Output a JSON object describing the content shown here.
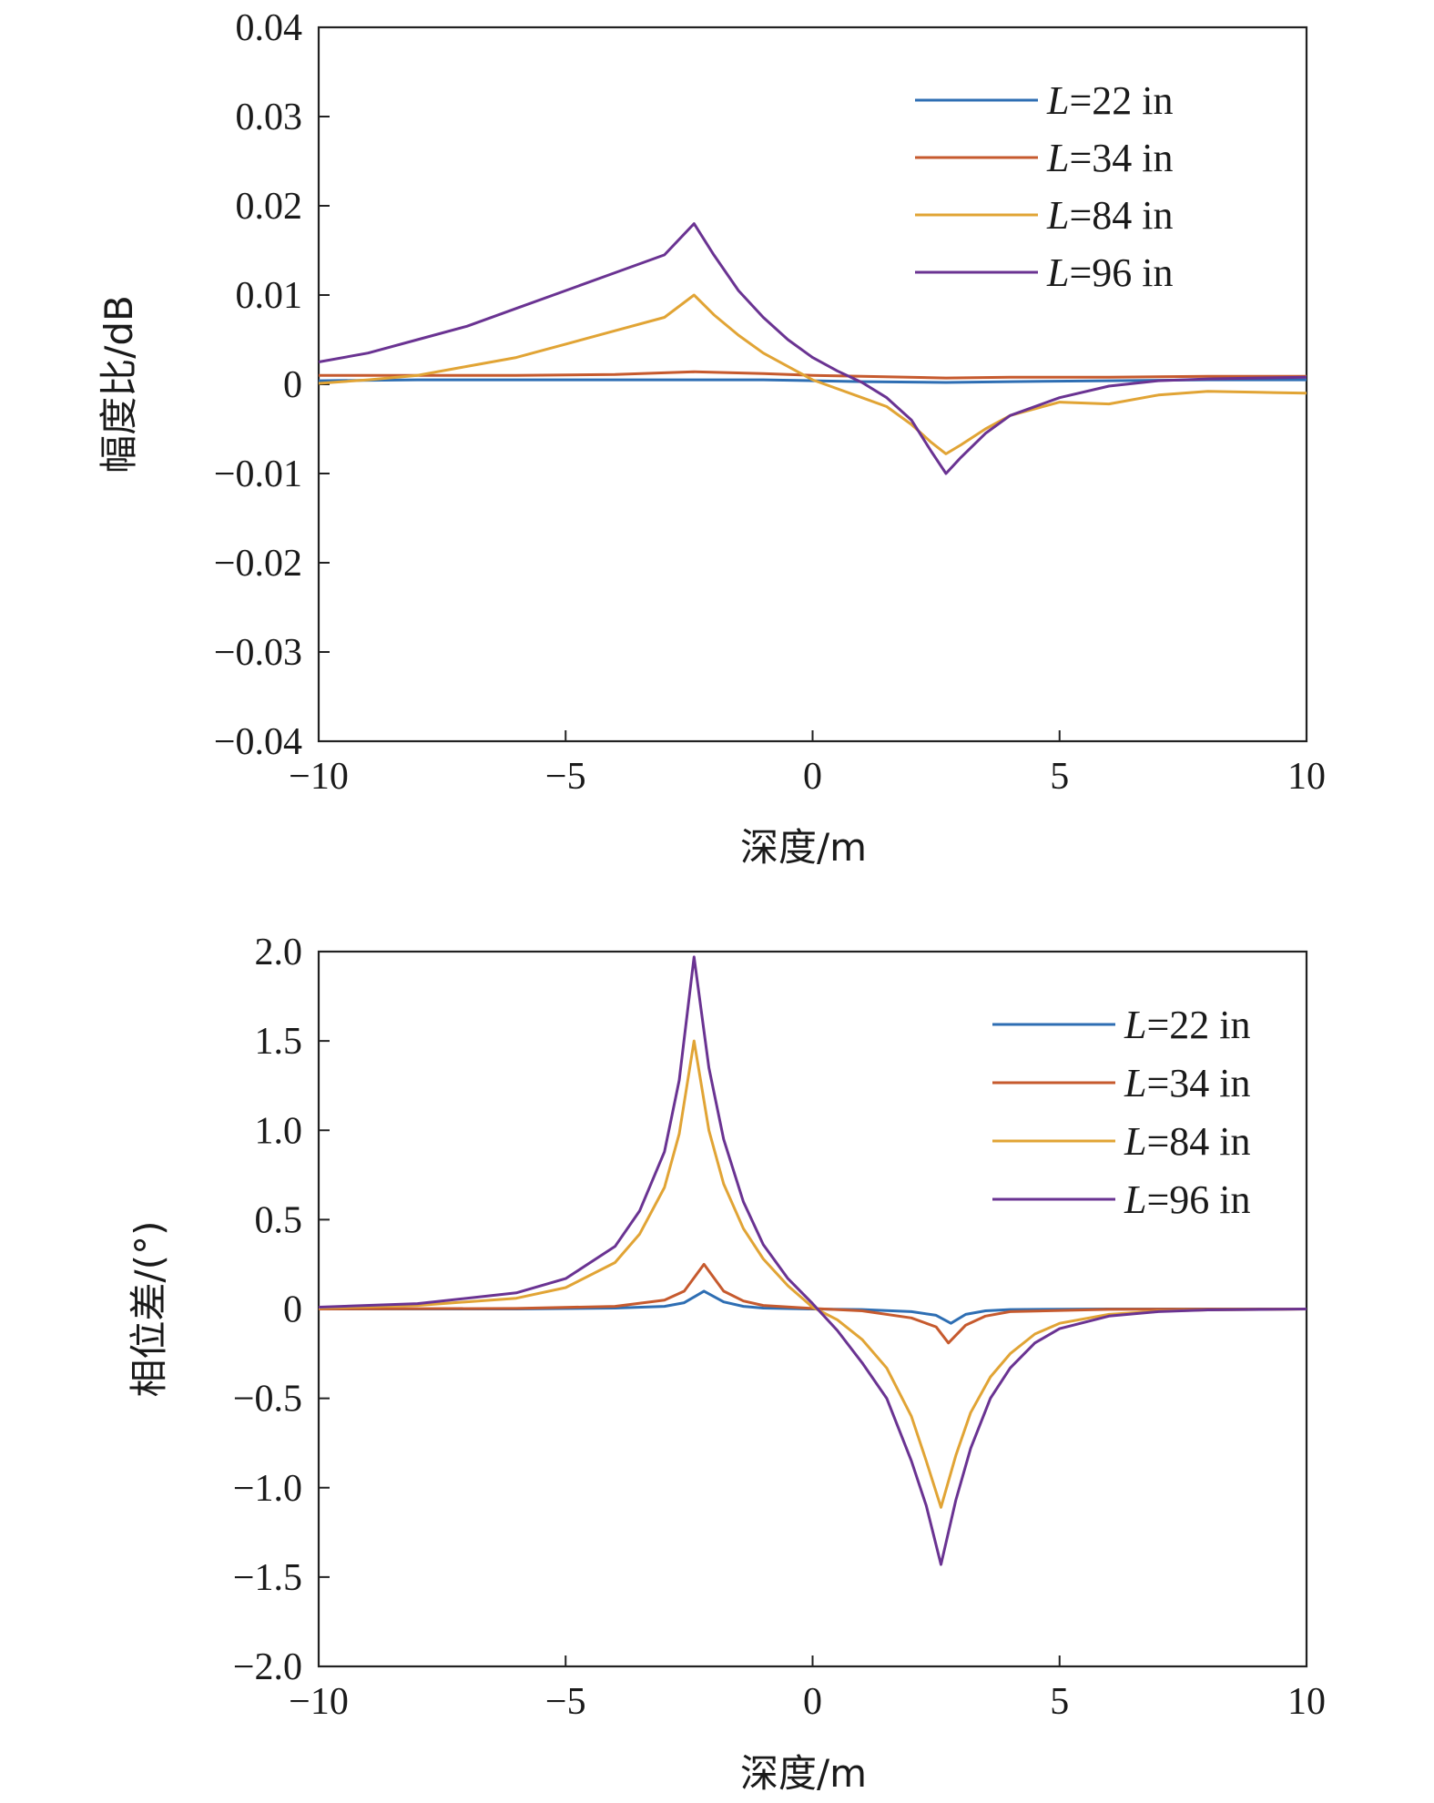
{
  "chart_data": [
    {
      "type": "line",
      "title": "",
      "xlabel": "深度/m",
      "ylabel": "幅度比/dB",
      "xlim": [
        -10,
        10
      ],
      "ylim": [
        -0.04,
        0.04
      ],
      "xticks": [
        -10,
        -5,
        0,
        5,
        10
      ],
      "xtick_labels": [
        "−10",
        "−5",
        "0",
        "5",
        "10"
      ],
      "yticks": [
        0.04,
        0.03,
        0.02,
        0.01,
        0,
        -0.01,
        -0.02,
        -0.03,
        -0.04
      ],
      "ytick_labels": [
        "0.04",
        "0.03",
        "0.02",
        "0.01",
        "0",
        "−0.01",
        "−0.02",
        "−0.03",
        "−0.04"
      ],
      "grid": false,
      "legend_position": "top-right",
      "series": [
        {
          "name": "L=22 in",
          "legend_var": "L",
          "legend_rest": "=22 in",
          "color": "#2e6eb3",
          "x": [
            -10,
            -8,
            -6,
            -4,
            -2.4,
            -1,
            0,
            1,
            2.7,
            4,
            6,
            8,
            10
          ],
          "y": [
            0.0004,
            0.0005,
            0.0005,
            0.0005,
            0.0005,
            0.0005,
            0.0004,
            0.0003,
            0.0002,
            0.0003,
            0.0004,
            0.0005,
            0.0005
          ]
        },
        {
          "name": "L=34 in",
          "legend_var": "L",
          "legend_rest": "=34 in",
          "color": "#c65a2e",
          "x": [
            -10,
            -8,
            -6,
            -4,
            -2.4,
            -1,
            0,
            1,
            2.7,
            4,
            6,
            8,
            10
          ],
          "y": [
            0.001,
            0.001,
            0.001,
            0.0011,
            0.0014,
            0.0012,
            0.001,
            0.0009,
            0.0007,
            0.0008,
            0.0008,
            0.0009,
            0.0009
          ]
        },
        {
          "name": "L=84 in",
          "legend_var": "L",
          "legend_rest": "=84 in",
          "color": "#e1a435",
          "x": [
            -10,
            -9,
            -8,
            -7,
            -6,
            -5,
            -4,
            -3,
            -2.4,
            -2,
            -1.5,
            -1,
            -0.5,
            0,
            0.5,
            1,
            1.5,
            2,
            2.4,
            2.7,
            3,
            3.5,
            4,
            5,
            6,
            7,
            8,
            9,
            10
          ],
          "y": [
            0.0001,
            0.0005,
            0.001,
            0.002,
            0.003,
            0.0045,
            0.006,
            0.0075,
            0.01,
            0.0078,
            0.0055,
            0.0035,
            0.002,
            0.0005,
            -0.0005,
            -0.0015,
            -0.0025,
            -0.0045,
            -0.0065,
            -0.0078,
            -0.0068,
            -0.005,
            -0.0035,
            -0.002,
            -0.0022,
            -0.0012,
            -0.0008,
            -0.0009,
            -0.001
          ]
        },
        {
          "name": "L=96 in",
          "legend_var": "L",
          "legend_rest": "=96 in",
          "color": "#6a3392",
          "x": [
            -10,
            -9,
            -8,
            -7,
            -6,
            -5,
            -4,
            -3,
            -2.4,
            -2,
            -1.5,
            -1,
            -0.5,
            0,
            0.5,
            1,
            1.5,
            2,
            2.4,
            2.7,
            3,
            3.5,
            4,
            5,
            6,
            7,
            8,
            9,
            10
          ],
          "y": [
            0.0025,
            0.0035,
            0.005,
            0.0065,
            0.0085,
            0.0105,
            0.0125,
            0.0145,
            0.018,
            0.0145,
            0.0105,
            0.0075,
            0.005,
            0.003,
            0.0015,
            0.0002,
            -0.0015,
            -0.004,
            -0.0075,
            -0.01,
            -0.0082,
            -0.0055,
            -0.0035,
            -0.0015,
            -0.0002,
            0.0004,
            0.0006,
            0.0007,
            0.0008
          ]
        }
      ]
    },
    {
      "type": "line",
      "title": "",
      "xlabel": "深度/m",
      "ylabel": "相位差/(°)",
      "xlim": [
        -10,
        10
      ],
      "ylim": [
        -2.0,
        2.0
      ],
      "xticks": [
        -10,
        -5,
        0,
        5,
        10
      ],
      "xtick_labels": [
        "−10",
        "−5",
        "0",
        "5",
        "10"
      ],
      "yticks": [
        2.0,
        1.5,
        1.0,
        0.5,
        0,
        -0.5,
        -1.0,
        -1.5,
        -2.0
      ],
      "ytick_labels": [
        "2.0",
        "1.5",
        "1.0",
        "0.5",
        "0",
        "−0.5",
        "−1.0",
        "−1.5",
        "−2.0"
      ],
      "grid": false,
      "legend_position": "top-right",
      "series": [
        {
          "name": "L=22 in",
          "legend_var": "L",
          "legend_rest": "=22 in",
          "color": "#2e6eb3",
          "x": [
            -10,
            -6,
            -4,
            -3,
            -2.6,
            -2.2,
            -1.8,
            -1.4,
            -1,
            0,
            1,
            2,
            2.5,
            2.8,
            3.1,
            3.5,
            4,
            6,
            10
          ],
          "y": [
            0,
            0.0,
            0.005,
            0.015,
            0.035,
            0.1,
            0.04,
            0.015,
            0.005,
            0,
            -0.003,
            -0.015,
            -0.035,
            -0.08,
            -0.03,
            -0.01,
            -0.003,
            0,
            0
          ]
        },
        {
          "name": "L=34 in",
          "legend_var": "L",
          "legend_rest": "=34 in",
          "color": "#c65a2e",
          "x": [
            -10,
            -6,
            -4,
            -3,
            -2.6,
            -2.2,
            -1.8,
            -1.4,
            -1,
            0,
            1,
            2,
            2.5,
            2.75,
            3.1,
            3.5,
            4,
            6,
            10
          ],
          "y": [
            0,
            0.003,
            0.015,
            0.05,
            0.1,
            0.25,
            0.1,
            0.045,
            0.02,
            0.003,
            -0.01,
            -0.05,
            -0.1,
            -0.19,
            -0.09,
            -0.04,
            -0.015,
            -0.002,
            0
          ]
        },
        {
          "name": "L=84 in",
          "legend_var": "L",
          "legend_rest": "=84 in",
          "color": "#e1a435",
          "x": [
            -10,
            -8,
            -6,
            -5,
            -4,
            -3.5,
            -3,
            -2.7,
            -2.4,
            -2.1,
            -1.8,
            -1.4,
            -1,
            -0.5,
            0,
            0.5,
            1,
            1.5,
            2,
            2.3,
            2.6,
            2.9,
            3.2,
            3.6,
            4,
            4.5,
            5,
            6,
            7,
            8,
            10
          ],
          "y": [
            0.005,
            0.02,
            0.06,
            0.12,
            0.26,
            0.42,
            0.68,
            0.98,
            1.5,
            1.0,
            0.7,
            0.45,
            0.28,
            0.13,
            0.01,
            -0.06,
            -0.17,
            -0.33,
            -0.6,
            -0.85,
            -1.11,
            -0.82,
            -0.58,
            -0.38,
            -0.25,
            -0.14,
            -0.08,
            -0.03,
            -0.012,
            -0.005,
            0
          ]
        },
        {
          "name": "L=96 in",
          "legend_var": "L",
          "legend_rest": "=96 in",
          "color": "#6a3392",
          "x": [
            -10,
            -8,
            -6,
            -5,
            -4,
            -3.5,
            -3,
            -2.7,
            -2.4,
            -2.1,
            -1.8,
            -1.4,
            -1,
            -0.5,
            0,
            0.5,
            1,
            1.5,
            2,
            2.3,
            2.6,
            2.9,
            3.2,
            3.6,
            4,
            4.5,
            5,
            6,
            7,
            8,
            10
          ],
          "y": [
            0.01,
            0.03,
            0.09,
            0.17,
            0.35,
            0.55,
            0.88,
            1.28,
            1.97,
            1.35,
            0.95,
            0.6,
            0.36,
            0.17,
            0.03,
            -0.12,
            -0.3,
            -0.5,
            -0.85,
            -1.1,
            -1.43,
            -1.07,
            -0.78,
            -0.5,
            -0.33,
            -0.19,
            -0.11,
            -0.04,
            -0.015,
            -0.005,
            0
          ]
        }
      ]
    }
  ]
}
